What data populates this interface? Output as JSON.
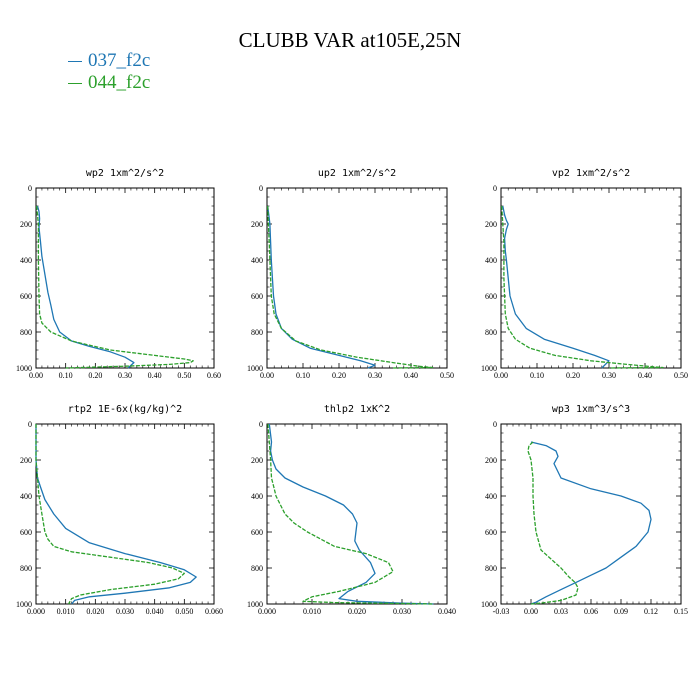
{
  "title": "CLUBB VAR at105E,25N",
  "legend": [
    {
      "name": "037_f2c",
      "color": "#1f77b4"
    },
    {
      "name": "044_f2c",
      "color": "#2ca02c"
    }
  ],
  "chart_data": [
    {
      "type": "line",
      "title": "wp2  1xm^2/s^2",
      "xlim": [
        0,
        0.6
      ],
      "xticks": [
        "0.00",
        "0.10",
        "0.20",
        "0.30",
        "0.40",
        "0.50",
        "0.60"
      ],
      "ylim": [
        1000,
        0
      ],
      "yticks": [
        "0",
        "200",
        "400",
        "600",
        "800",
        "1000"
      ],
      "series": [
        {
          "name": "037_f2c",
          "x": [
            0.005,
            0.01,
            0.012,
            0.01,
            0.015,
            0.02,
            0.03,
            0.04,
            0.05,
            0.06,
            0.08,
            0.12,
            0.18,
            0.25,
            0.3,
            0.33,
            0.31
          ],
          "y": [
            100,
            130,
            170,
            220,
            300,
            380,
            480,
            580,
            650,
            730,
            800,
            850,
            880,
            910,
            940,
            970,
            1000
          ]
        },
        {
          "name": "044_f2c",
          "x": [
            0.002,
            0.005,
            0.008,
            0.008,
            0.008,
            0.009,
            0.01,
            0.012,
            0.02,
            0.05,
            0.12,
            0.25,
            0.4,
            0.5,
            0.53,
            0.52,
            0.45,
            0.3,
            0.1
          ],
          "y": [
            100,
            150,
            200,
            300,
            400,
            500,
            600,
            700,
            750,
            800,
            850,
            900,
            930,
            950,
            960,
            970,
            980,
            990,
            1000
          ]
        }
      ]
    },
    {
      "type": "line",
      "title": "up2  1xm^2/s^2",
      "xlim": [
        0,
        0.5
      ],
      "xticks": [
        "0.00",
        "0.10",
        "0.20",
        "0.30",
        "0.40",
        "0.50"
      ],
      "ylim": [
        1000,
        0
      ],
      "yticks": [
        "0",
        "200",
        "400",
        "600",
        "800",
        "1000"
      ],
      "series": [
        {
          "name": "037_f2c",
          "x": [
            0.002,
            0.005,
            0.008,
            0.01,
            0.012,
            0.015,
            0.018,
            0.025,
            0.04,
            0.07,
            0.12,
            0.2,
            0.26,
            0.3,
            0.28
          ],
          "y": [
            100,
            150,
            200,
            300,
            400,
            500,
            600,
            700,
            780,
            840,
            890,
            930,
            960,
            985,
            1000
          ]
        },
        {
          "name": "044_f2c",
          "x": [
            0.002,
            0.004,
            0.006,
            0.008,
            0.01,
            0.012,
            0.02,
            0.04,
            0.08,
            0.15,
            0.25,
            0.35,
            0.42,
            0.46,
            0.35
          ],
          "y": [
            100,
            200,
            300,
            400,
            500,
            600,
            700,
            780,
            850,
            900,
            940,
            970,
            990,
            997,
            1000
          ]
        }
      ]
    },
    {
      "type": "line",
      "title": "vp2  1xm^2/s^2",
      "xlim": [
        0,
        0.5
      ],
      "xticks": [
        "0.00",
        "0.10",
        "0.20",
        "0.30",
        "0.40",
        "0.50"
      ],
      "ylim": [
        1000,
        0
      ],
      "yticks": [
        "0",
        "200",
        "400",
        "600",
        "800",
        "1000"
      ],
      "series": [
        {
          "name": "037_f2c",
          "x": [
            0.005,
            0.01,
            0.015,
            0.02,
            0.015,
            0.01,
            0.012,
            0.015,
            0.02,
            0.025,
            0.04,
            0.07,
            0.12,
            0.2,
            0.26,
            0.3,
            0.28
          ],
          "y": [
            100,
            150,
            180,
            200,
            230,
            280,
            350,
            400,
            500,
            600,
            700,
            780,
            840,
            890,
            930,
            960,
            1000
          ]
        },
        {
          "name": "044_f2c",
          "x": [
            0.002,
            0.005,
            0.008,
            0.008,
            0.008,
            0.01,
            0.012,
            0.02,
            0.04,
            0.08,
            0.15,
            0.25,
            0.35,
            0.42,
            0.45,
            0.3
          ],
          "y": [
            100,
            200,
            300,
            400,
            500,
            600,
            700,
            780,
            840,
            890,
            930,
            960,
            980,
            993,
            997,
            1000
          ]
        }
      ]
    },
    {
      "type": "line",
      "title": "rtp2  1E-6x(kg/kg)^2",
      "xlim": [
        0,
        0.06
      ],
      "xticks": [
        "0.000",
        "0.010",
        "0.020",
        "0.030",
        "0.040",
        "0.050",
        "0.060"
      ],
      "ylim": [
        1000,
        0
      ],
      "yticks": [
        "0",
        "200",
        "400",
        "600",
        "800",
        "1000"
      ],
      "series": [
        {
          "name": "037_f2c",
          "x": [
            0,
            0,
            0.0005,
            0.0015,
            0.003,
            0.006,
            0.01,
            0.018,
            0.03,
            0.042,
            0.05,
            0.054,
            0.052,
            0.045,
            0.03,
            0.018,
            0.013,
            0.012
          ],
          "y": [
            0,
            200,
            300,
            350,
            420,
            500,
            580,
            660,
            720,
            770,
            810,
            850,
            880,
            910,
            940,
            960,
            980,
            1000
          ]
        },
        {
          "name": "044_f2c",
          "x": [
            0,
            0,
            0.0005,
            0.001,
            0.002,
            0.003,
            0.004,
            0.006,
            0.012,
            0.025,
            0.038,
            0.046,
            0.05,
            0.048,
            0.04,
            0.025,
            0.015,
            0.012,
            0.011
          ],
          "y": [
            0,
            200,
            300,
            400,
            500,
            600,
            640,
            680,
            710,
            740,
            770,
            800,
            830,
            860,
            890,
            920,
            950,
            970,
            1000
          ]
        }
      ]
    },
    {
      "type": "line",
      "title": "thlp2  1xK^2",
      "xlim": [
        0,
        0.04
      ],
      "xticks": [
        "0.000",
        "0.010",
        "0.020",
        "0.030",
        "0.040"
      ],
      "ylim": [
        1000,
        0
      ],
      "yticks": [
        "0",
        "200",
        "400",
        "600",
        "800",
        "1000"
      ],
      "series": [
        {
          "name": "037_f2c",
          "x": [
            0.0005,
            0.001,
            0.0008,
            0.0012,
            0.002,
            0.004,
            0.008,
            0.013,
            0.017,
            0.019,
            0.02,
            0.0195,
            0.0205,
            0.023,
            0.024,
            0.022,
            0.018,
            0.016,
            0.02,
            0.03,
            0.037
          ],
          "y": [
            0,
            100,
            150,
            200,
            250,
            300,
            350,
            400,
            450,
            500,
            550,
            650,
            700,
            770,
            830,
            880,
            930,
            970,
            985,
            995,
            1000
          ]
        },
        {
          "name": "044_f2c",
          "x": [
            0.0002,
            0.0005,
            0.0008,
            0.001,
            0.0015,
            0.002,
            0.003,
            0.004,
            0.006,
            0.009,
            0.015,
            0.022,
            0.027,
            0.028,
            0.024,
            0.016,
            0.01,
            0.008,
            0.015,
            0.03,
            0.037
          ],
          "y": [
            0,
            100,
            200,
            300,
            350,
            400,
            450,
            500,
            550,
            600,
            680,
            720,
            770,
            820,
            880,
            930,
            960,
            985,
            992,
            997,
            1000
          ]
        }
      ]
    },
    {
      "type": "line",
      "title": "wp3  1xm^3/s^3",
      "xlim": [
        -0.03,
        0.15
      ],
      "xticks": [
        "-0.03",
        "0.00",
        "0.03",
        "0.06",
        "0.09",
        "0.12",
        "0.15"
      ],
      "ylim": [
        1000,
        0
      ],
      "yticks": [
        "0",
        "200",
        "400",
        "600",
        "800",
        "1000"
      ],
      "series": [
        {
          "name": "037_f2c",
          "x": [
            0,
            0.015,
            0.025,
            0.027,
            0.023,
            0.03,
            0.06,
            0.09,
            0.11,
            0.118,
            0.12,
            0.117,
            0.105,
            0.09,
            0.075,
            0.06,
            0.045,
            0.03,
            0.015,
            0.005,
            0
          ],
          "y": [
            100,
            120,
            150,
            180,
            220,
            300,
            360,
            400,
            440,
            480,
            530,
            600,
            680,
            740,
            800,
            840,
            880,
            920,
            960,
            990,
            1000
          ]
        },
        {
          "name": "044_f2c",
          "x": [
            0.002,
            -0.002,
            -0.003,
            0,
            0.002,
            0.002,
            0.003,
            0.005,
            0.01,
            0.02,
            0.03,
            0.038,
            0.044,
            0.047,
            0.045,
            0.03,
            0.01,
            0
          ],
          "y": [
            100,
            120,
            150,
            200,
            300,
            400,
            500,
            600,
            700,
            750,
            800,
            850,
            880,
            910,
            950,
            980,
            995,
            1000
          ]
        }
      ]
    }
  ]
}
